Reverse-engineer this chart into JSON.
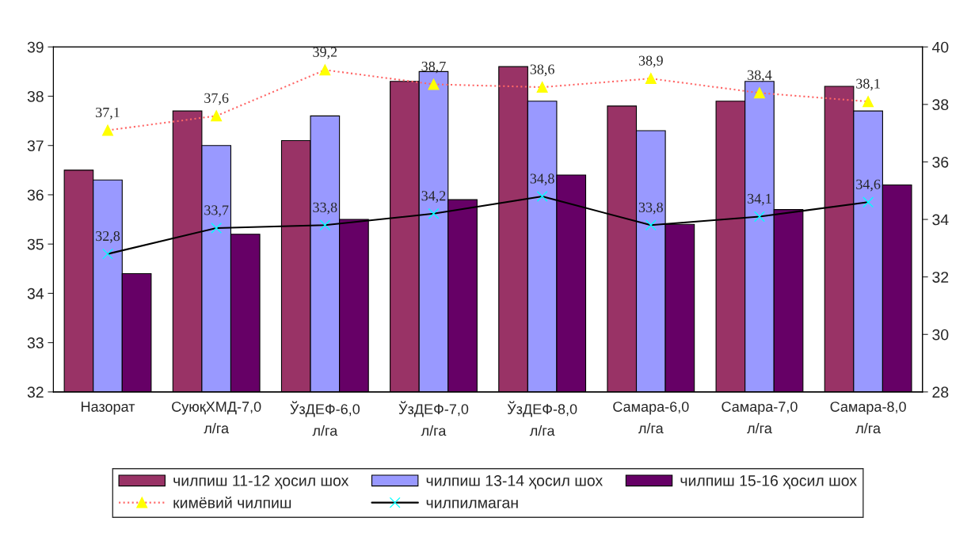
{
  "chart_data": {
    "type": "bar",
    "categories": [
      "Назорат",
      "СуюқХМД-7,0\nл/га",
      "ЎзДЕФ-6,0\nл/га",
      "ЎзДЕФ-7,0\nл/га",
      "ЎзДЕФ-8,0\nл/га",
      "Самара-6,0\nл/га",
      "Самара-7,0\nл/га",
      "Самара-8,0\nл/га"
    ],
    "ylim": [
      32,
      39
    ],
    "yticks": [
      32,
      33,
      34,
      35,
      36,
      37,
      38,
      39
    ],
    "y2lim": [
      28,
      40
    ],
    "y2ticks": [
      28,
      30,
      32,
      34,
      36,
      38,
      40
    ],
    "grid": false,
    "legend": "bottom",
    "series": [
      {
        "name": "чилпиш 11-12 ҳосил шох",
        "color": "#993366",
        "values": [
          36.5,
          37.7,
          37.1,
          38.3,
          38.6,
          37.8,
          37.9,
          38.2
        ]
      },
      {
        "name": "чилпиш 13-14 ҳосил шох",
        "color": "#9999ff",
        "values": [
          36.3,
          37.0,
          37.6,
          38.5,
          37.9,
          37.3,
          38.3,
          37.7
        ]
      },
      {
        "name": "чилпиш 15-16 ҳосил шох",
        "color": "#660066",
        "values": [
          34.4,
          35.2,
          35.5,
          35.9,
          36.4,
          35.4,
          35.7,
          36.2
        ]
      },
      {
        "name": "кимёвий чилпиш",
        "type": "line",
        "axis": "y2",
        "color": "#ff6666",
        "marker": "triangle",
        "line_style": "dotted",
        "values": [
          37.1,
          37.6,
          39.2,
          38.7,
          38.6,
          38.9,
          38.4,
          38.1
        ],
        "value_labels": [
          "37,1",
          "37,6",
          "39,2",
          "38,7",
          "38,6",
          "38,9",
          "38,4",
          "38,1"
        ]
      },
      {
        "name": "чилпилмаган",
        "type": "line",
        "axis": "y2",
        "color": "#000000",
        "marker": "cross",
        "line_style": "solid",
        "values": [
          32.8,
          33.7,
          33.8,
          34.2,
          34.8,
          33.8,
          34.1,
          34.6
        ],
        "value_labels": [
          "32,8",
          "33,7",
          "33,8",
          "34,2",
          "34,8",
          "33,8",
          "34,1",
          "34,6"
        ]
      }
    ]
  }
}
